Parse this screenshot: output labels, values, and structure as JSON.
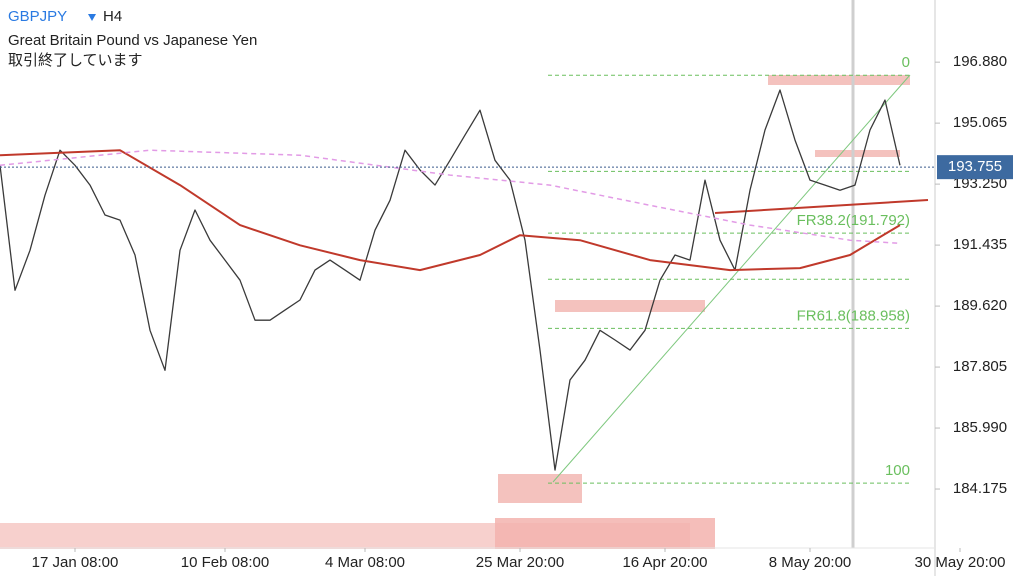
{
  "chart_data": {
    "type": "line",
    "symbol": "GBPJPY",
    "timeframe": "H4",
    "title": "Great Britain Pound vs Japanese Yen",
    "subtitle": "取引終了しています",
    "xlim": [
      0,
      187
    ],
    "xticks": [
      {
        "value": 15,
        "label": "17 Jan 08:00"
      },
      {
        "value": 45,
        "label": "10 Feb 08:00"
      },
      {
        "value": 73,
        "label": "4 Mar 08:00"
      },
      {
        "value": 104,
        "label": "25 Mar 20:00"
      },
      {
        "value": 133,
        "label": "16 Apr 20:00"
      },
      {
        "value": 162,
        "label": "8 May 20:00"
      },
      {
        "value": 192,
        "label": "30 May 20:00"
      }
    ],
    "ylim": [
      182.42,
      198.73
    ],
    "yticks": [
      184.175,
      {
        "value": 185.99,
        "label": "185.990"
      },
      187.805,
      {
        "value": 189.62,
        "label": "189.620"
      },
      191.435,
      {
        "value": 193.25,
        "label": "193.250"
      },
      195.065,
      {
        "value": 196.88,
        "label": "196.880"
      }
    ],
    "last_price": 193.755,
    "series": [
      {
        "color": "#3a3a3a",
        "width": 1.3,
        "style": "solid",
        "x": [
          0,
          3,
          6,
          9,
          12,
          15,
          18,
          21,
          24,
          27,
          30,
          33,
          36,
          39,
          42,
          45,
          48,
          51,
          54,
          57,
          60,
          63,
          66,
          69,
          72,
          75,
          78,
          81,
          84,
          87,
          90,
          93,
          96,
          99,
          102,
          105,
          108,
          111,
          114,
          117,
          120,
          123,
          126,
          129,
          132,
          135,
          138,
          141,
          144,
          147,
          150,
          153,
          156,
          159,
          162,
          165,
          168,
          171,
          174,
          177,
          180
        ],
        "values": [
          193.81,
          190.09,
          191.28,
          192.92,
          194.26,
          193.81,
          193.22,
          192.33,
          192.18,
          191.14,
          188.9,
          187.71,
          191.28,
          192.48,
          191.58,
          190.99,
          190.39,
          189.2,
          189.2,
          189.5,
          189.8,
          190.69,
          190.99,
          190.69,
          190.39,
          191.88,
          192.77,
          194.26,
          193.67,
          193.22,
          193.96,
          194.71,
          195.45,
          193.96,
          193.37,
          191.58,
          188.31,
          184.74,
          187.42,
          188.01,
          188.9,
          188.61,
          188.31,
          188.9,
          190.39,
          191.14,
          190.99,
          193.37,
          191.58,
          190.69,
          193.07,
          194.86,
          196.05,
          194.56,
          193.37,
          193.22,
          193.07,
          193.22,
          194.86,
          195.75,
          193.81
        ]
      },
      {
        "color": "#c0392b",
        "width": 2,
        "style": "solid",
        "x": [
          0,
          24,
          36,
          48,
          60,
          72,
          84,
          96,
          104,
          116,
          130,
          146,
          160,
          170,
          180
        ],
        "values": [
          194.11,
          194.26,
          193.22,
          192.03,
          191.43,
          190.99,
          190.69,
          191.14,
          191.73,
          191.58,
          190.99,
          190.69,
          190.75,
          191.14,
          192.03
        ]
      },
      {
        "color": "#e29be6",
        "width": 1.5,
        "style": "dashed",
        "x": [
          0,
          30,
          60,
          90,
          110,
          130,
          150,
          170,
          180
        ],
        "values": [
          193.81,
          194.26,
          194.11,
          193.52,
          193.22,
          192.62,
          192.03,
          191.58,
          191.49
        ]
      }
    ],
    "fib_color": "#6abf5e",
    "fib_levels": [
      {
        "level": 0,
        "price": 196.49
      },
      {
        "price": 193.63
      },
      {
        "price": 191.792,
        "label": "FR38.2(191.792)"
      },
      {
        "price": 190.42
      },
      {
        "price": 188.958,
        "label": "FR61.8(188.958)"
      },
      {
        "level": 100,
        "price": 184.35
      }
    ]
  }
}
